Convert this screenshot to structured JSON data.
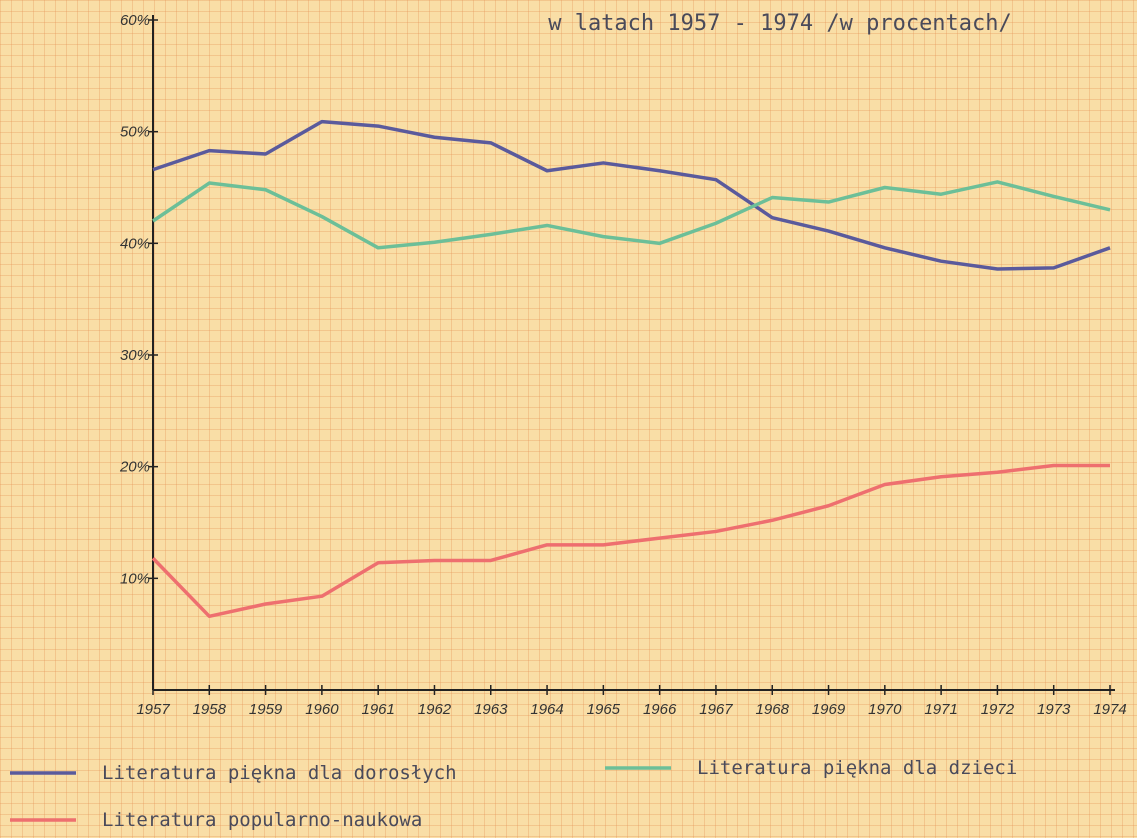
{
  "chart_data": {
    "type": "line",
    "title": "w latach 1957 - 1974  /w procentach/",
    "x": [
      1957,
      1958,
      1959,
      1960,
      1961,
      1962,
      1963,
      1964,
      1965,
      1966,
      1967,
      1968,
      1969,
      1970,
      1971,
      1972,
      1973,
      1974
    ],
    "xlim": [
      1957,
      1974
    ],
    "xticks": [
      1957,
      1958,
      1959,
      1960,
      1961,
      1962,
      1963,
      1964,
      1965,
      1966,
      1967,
      1968,
      1969,
      1970,
      1971,
      1972,
      1973,
      1974
    ],
    "ylim": [
      0,
      60
    ],
    "yticks": [
      {
        "value": 10,
        "label": "10%"
      },
      {
        "value": 20,
        "label": "20%"
      },
      {
        "value": 30,
        "label": "30%"
      },
      {
        "value": 40,
        "label": "40%"
      },
      {
        "value": 50,
        "label": "50%"
      },
      {
        "value": 60,
        "label": "60%"
      }
    ],
    "series": [
      {
        "name": "Literatura piękna dla dorosłych",
        "color": "#5a5a9c",
        "values": [
          46.6,
          48.3,
          48.0,
          50.9,
          50.5,
          49.5,
          49.0,
          46.5,
          47.2,
          46.5,
          45.7,
          42.3,
          41.1,
          39.6,
          38.4,
          37.7,
          37.8,
          39.6
        ]
      },
      {
        "name": "Literatura piękna dla dzieci",
        "color": "#6cbf98",
        "values": [
          42.0,
          45.4,
          44.8,
          42.4,
          39.6,
          40.1,
          40.8,
          41.6,
          40.6,
          40.0,
          41.8,
          44.1,
          43.7,
          45.0,
          44.4,
          45.5,
          44.2,
          43.0
        ]
      },
      {
        "name": "Literatura popularno-naukowa",
        "color": "#ee6f6f",
        "values": [
          11.8,
          6.6,
          7.7,
          8.4,
          11.4,
          11.6,
          11.6,
          13.0,
          13.0,
          13.6,
          14.2,
          15.2,
          16.5,
          18.4,
          19.1,
          19.5,
          20.1,
          20.1
        ]
      }
    ]
  }
}
